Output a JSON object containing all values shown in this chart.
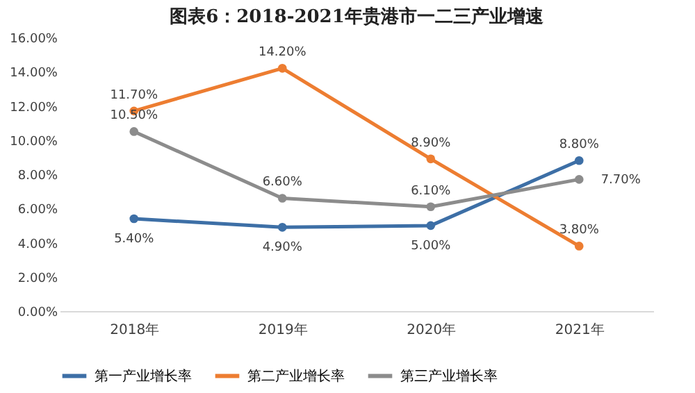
{
  "chart_data": {
    "type": "line",
    "title": "图表6：2018-2021年贵港市一二三产业增速",
    "categories": [
      "2018年",
      "2019年",
      "2020年",
      "2021年"
    ],
    "series": [
      {
        "name": "第一产业增长率",
        "color": "#3d6fa6",
        "values": [
          5.4,
          4.9,
          5.0,
          8.8
        ],
        "value_labels": [
          "5.40%",
          "4.90%",
          "5.00%",
          "8.80%"
        ]
      },
      {
        "name": "第二产业增长率",
        "color": "#ed7d31",
        "values": [
          11.7,
          14.2,
          8.9,
          3.8
        ],
        "value_labels": [
          "11.70%",
          "14.20%",
          "8.90%",
          "3.80%"
        ]
      },
      {
        "name": "第三产业增长率",
        "color": "#8c8c8c",
        "values": [
          10.5,
          6.6,
          6.1,
          7.7
        ],
        "value_labels": [
          "10.50%",
          "6.60%",
          "6.10%",
          "7.70%"
        ]
      }
    ],
    "ylim": [
      0,
      16
    ],
    "yticks": [
      {
        "value": 0,
        "label": "0.00%"
      },
      {
        "value": 2,
        "label": "2.00%"
      },
      {
        "value": 4,
        "label": "4.00%"
      },
      {
        "value": 6,
        "label": "6.00%"
      },
      {
        "value": 8,
        "label": "8.00%"
      },
      {
        "value": 10,
        "label": "10.00%"
      },
      {
        "value": 12,
        "label": "12.00%"
      },
      {
        "value": 14,
        "label": "14.00%"
      },
      {
        "value": 16,
        "label": "16.00%"
      }
    ],
    "grid": false,
    "legend": "bottom",
    "marker": "circle",
    "line_style": "solid"
  }
}
